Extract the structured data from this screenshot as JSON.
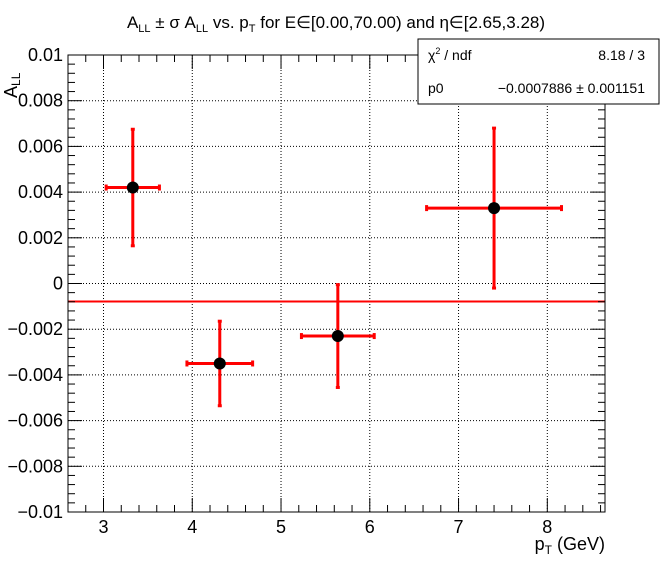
{
  "chart_data": {
    "type": "scatter",
    "title": "A_LL ± σ A_LL vs. p_T for E∈[0.00,70.00) and η∈[2.65,3.28)",
    "xlabel": "p_T (GeV)",
    "ylabel": "A_LL",
    "xlim": [
      2.6,
      8.65
    ],
    "ylim": [
      -0.01,
      0.01
    ],
    "x_ticks": [
      3,
      4,
      5,
      6,
      7,
      8
    ],
    "x_tick_labels": [
      "3",
      "4",
      "5",
      "6",
      "7",
      "8"
    ],
    "y_ticks": [
      -0.01,
      -0.008,
      -0.006,
      -0.004,
      -0.002,
      0,
      0.002,
      0.004,
      0.006,
      0.008,
      0.01
    ],
    "y_tick_labels": [
      "−0.01",
      "−0.008",
      "−0.006",
      "−0.004",
      "−0.002",
      "0",
      "0.002",
      "0.004",
      "0.006",
      "0.008",
      "0.01"
    ],
    "grid": true,
    "points": [
      {
        "x": 3.33,
        "y": 0.0042,
        "xerr": 0.3,
        "yerr": 0.00255
      },
      {
        "x": 4.31,
        "y": -0.0035,
        "xerr": 0.37,
        "yerr": 0.00185
      },
      {
        "x": 5.64,
        "y": -0.0023,
        "xerr": 0.41,
        "yerr": 0.00225
      },
      {
        "x": 7.4,
        "y": 0.0033,
        "xerr": 0.76,
        "yerr": 0.0035
      }
    ],
    "fit": {
      "p0": -0.0007886
    },
    "colors": {
      "errorbar": "#ff0000",
      "marker": "#000000",
      "fit_line": "#ff0000",
      "grid": "#000000"
    },
    "stats_box": {
      "placement": "top-right",
      "rows": [
        {
          "label": "χ² / ndf",
          "value": "8.18 / 3"
        },
        {
          "label": "p0",
          "value": "−0.0007886 ± 0.001151"
        }
      ]
    }
  }
}
